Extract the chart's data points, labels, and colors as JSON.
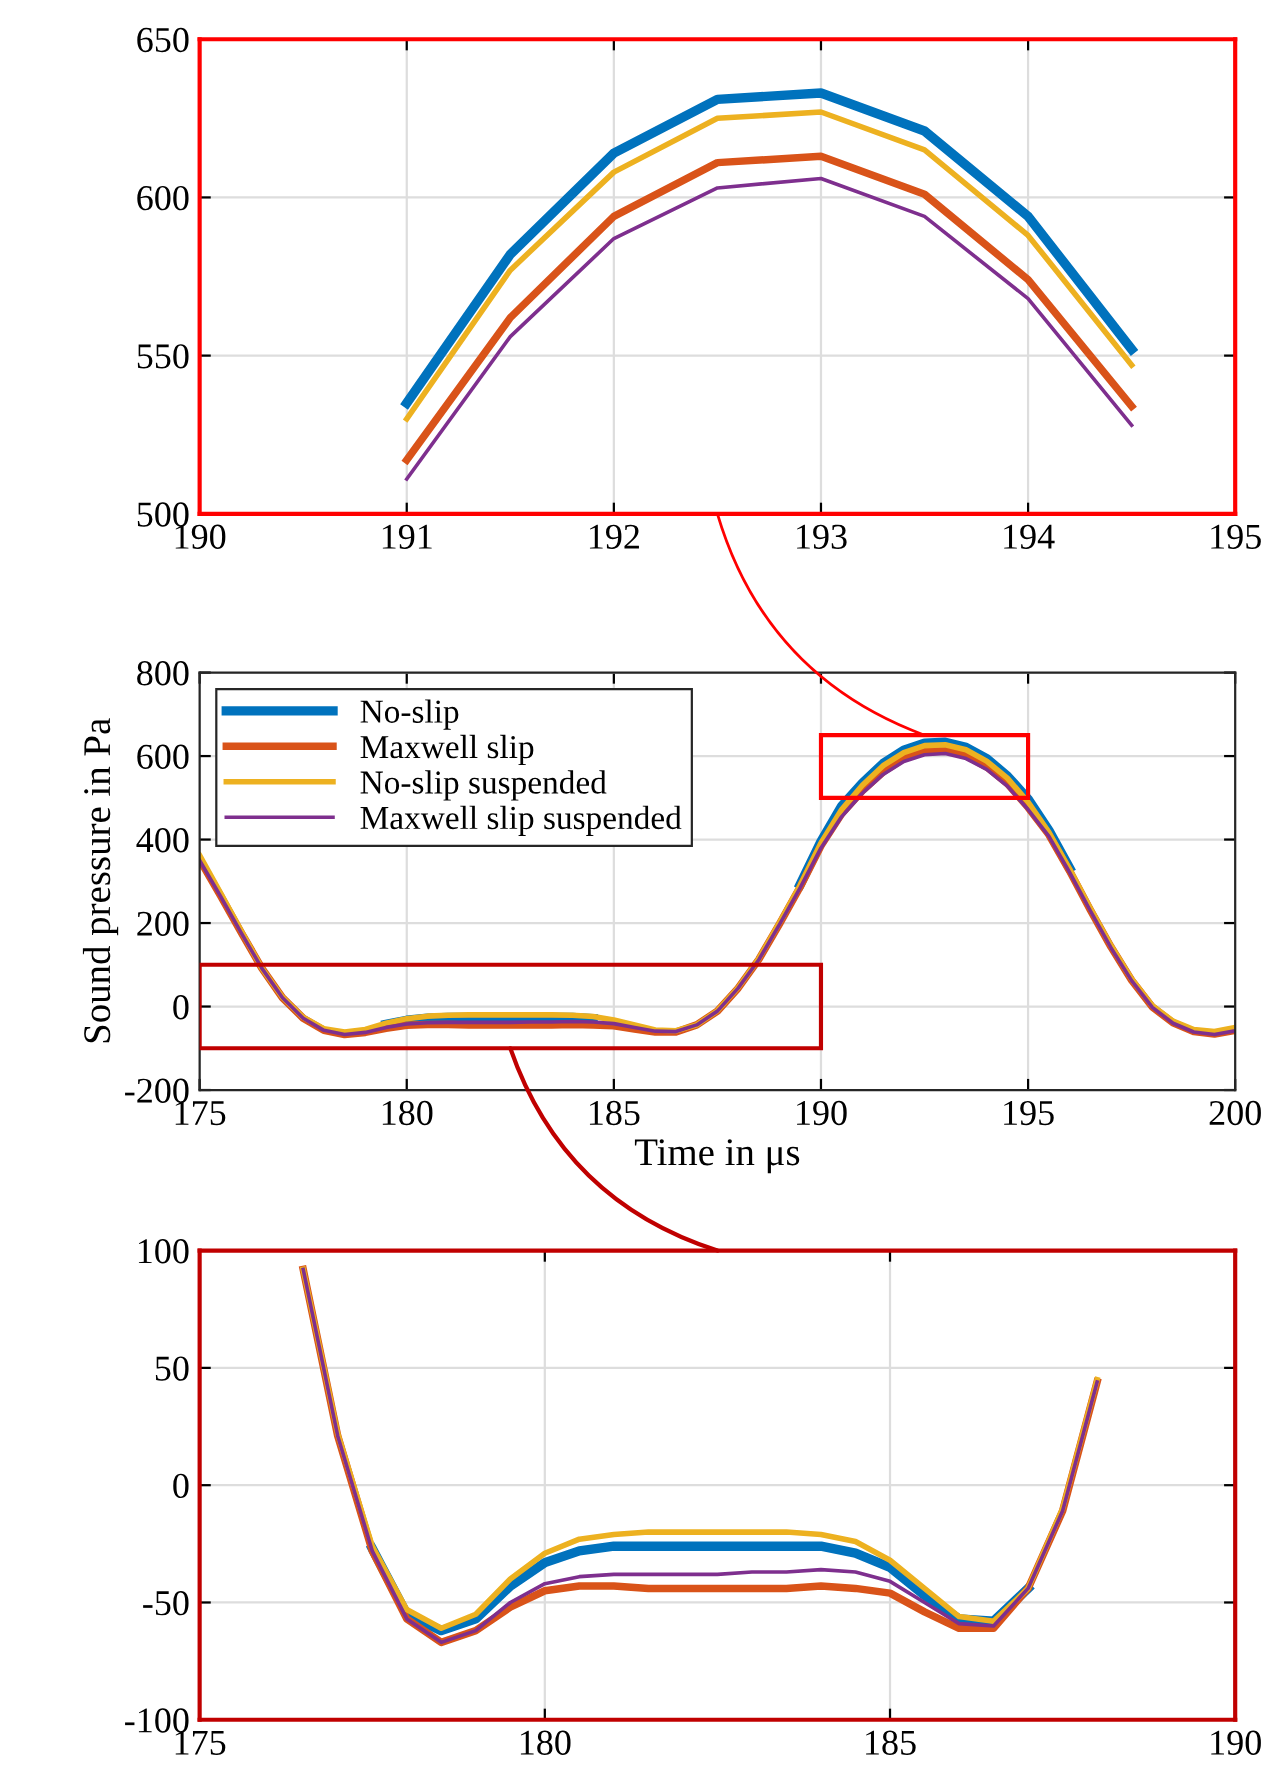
{
  "chart_data": [
    {
      "type": "line",
      "x": [
        191,
        191.5,
        192,
        192.5,
        193,
        193.5,
        194,
        194.5
      ],
      "xlim": [
        190,
        195
      ],
      "xticks": [
        190,
        191,
        192,
        193,
        194,
        195
      ],
      "ylim": [
        500,
        650
      ],
      "yticks": [
        500,
        550,
        600,
        650
      ],
      "grid": true,
      "legend": false,
      "line_style": "solid",
      "marker": "none",
      "series": [
        {
          "color": "#0072bd",
          "values": [
            535,
            582,
            614,
            631,
            633,
            621,
            594,
            552
          ]
        },
        {
          "color": "#d95319",
          "values": [
            517,
            562,
            594,
            611,
            613,
            601,
            574,
            534
          ]
        },
        {
          "color": "#edb120",
          "values": [
            530,
            577,
            608,
            625,
            627,
            615,
            588,
            547
          ]
        },
        {
          "color": "#7e2f8e",
          "values": [
            511,
            556,
            587,
            603,
            606,
            594,
            568,
            528
          ]
        }
      ]
    },
    {
      "type": "line",
      "x": [
        175,
        175.5,
        176,
        176.5,
        177,
        177.5,
        178,
        178.5,
        179,
        179.5,
        180,
        180.5,
        181,
        181.5,
        182,
        182.5,
        183,
        183.5,
        184,
        184.5,
        185,
        185.5,
        186,
        186.5,
        187,
        187.5,
        188,
        188.5,
        189,
        189.5,
        190,
        190.5,
        191,
        191.5,
        192,
        192.5,
        193,
        193.5,
        194,
        194.5,
        195,
        195.5,
        196,
        196.5,
        197,
        197.5,
        198,
        198.5,
        199,
        199.5,
        200
      ],
      "xlim": [
        175,
        200
      ],
      "xticks": [
        175,
        180,
        185,
        190,
        195,
        200
      ],
      "ylim": [
        -200,
        800
      ],
      "yticks": [
        -200,
        0,
        200,
        400,
        600,
        800
      ],
      "xlabel": "Time in μs",
      "ylabel": "Sound pressure in Pa",
      "grid": true,
      "legend": "top left",
      "line_style": "solid",
      "marker": "none",
      "series": [
        {
          "name": "No-slip",
          "color": "#0072bd",
          "values": [
            null,
            null,
            null,
            null,
            null,
            null,
            null,
            null,
            null,
            -43,
            -33,
            -28,
            -26,
            -26,
            -26,
            -26,
            -26,
            -26,
            -26,
            -29,
            null,
            null,
            null,
            null,
            null,
            null,
            null,
            null,
            null,
            293,
            395,
            480,
            535,
            582,
            614,
            631,
            633,
            621,
            594,
            552,
            497,
            422,
            332,
            null,
            null,
            null,
            null,
            null,
            null,
            null,
            null
          ]
        },
        {
          "name": "Maxwell slip",
          "color": "#d95319",
          "values": [
            352,
            266,
            178,
            92,
            21,
            -28,
            -57,
            -67,
            -62,
            -52,
            -45,
            -43,
            -43,
            -44,
            -44,
            -44,
            -44,
            -44,
            -43,
            -44,
            -46,
            -54,
            -61,
            -61,
            -44,
            -11,
            44,
            113,
            198,
            287,
            385,
            462,
            517,
            562,
            594,
            611,
            613,
            601,
            574,
            534,
            477,
            412,
            325,
            232,
            143,
            63,
            -1,
            -39,
            -60,
            -66,
            -57
          ]
        },
        {
          "name": "No-slip suspended",
          "color": "#edb120",
          "values": [
            362,
            273,
            182,
            92,
            22,
            -26,
            -53,
            -61,
            -55,
            -40,
            -29,
            -23,
            -21,
            -20,
            -20,
            -20,
            -20,
            -20,
            -21,
            -24,
            -32,
            -44,
            -56,
            -58,
            -44,
            -10,
            45,
            115,
            201,
            291,
            392,
            472,
            530,
            577,
            608,
            625,
            627,
            615,
            588,
            547,
            490,
            418,
            330,
            236,
            146,
            66,
            2,
            -35,
            -55,
            -60,
            -50
          ]
        },
        {
          "name": "Maxwell slip suspended",
          "color": "#7e2f8e",
          "values": [
            350,
            265,
            177,
            92,
            21,
            -28,
            -57,
            -67,
            -62,
            -50,
            -42,
            -39,
            -38,
            -38,
            -38,
            -38,
            -37,
            -37,
            -36,
            -37,
            -41,
            -50,
            -59,
            -60,
            -44,
            -11,
            44,
            112,
            197,
            285,
            380,
            455,
            511,
            556,
            587,
            603,
            606,
            594,
            568,
            528,
            472,
            408,
            322,
            230,
            141,
            62,
            -2,
            -40,
            -61,
            -67,
            -58
          ]
        }
      ]
    },
    {
      "type": "line",
      "x": [
        176.5,
        177,
        177.5,
        178,
        178.5,
        179,
        179.5,
        180,
        180.5,
        181,
        181.5,
        182,
        182.5,
        183,
        183.5,
        184,
        184.5,
        185,
        185.5,
        186,
        186.5,
        187,
        187.5,
        188
      ],
      "xlim": [
        175,
        190
      ],
      "xticks": [
        175,
        180,
        185,
        190
      ],
      "ylim": [
        -100,
        100
      ],
      "yticks": [
        -100,
        -50,
        0,
        50,
        100
      ],
      "grid": true,
      "legend": false,
      "line_style": "solid",
      "marker": "none",
      "series": [
        {
          "color": "#0072bd",
          "values": [
            null,
            null,
            -27,
            -55,
            -62,
            -57,
            -43,
            -33,
            -28,
            -26,
            -26,
            -26,
            -26,
            -26,
            -26,
            -26,
            -29,
            -35,
            -47,
            -57,
            -58,
            -44,
            null,
            null
          ]
        },
        {
          "color": "#d95319",
          "values": [
            92,
            21,
            -28,
            -57,
            -67,
            -62,
            -52,
            -45,
            -43,
            -43,
            -44,
            -44,
            -44,
            -44,
            -44,
            -43,
            -44,
            -46,
            -54,
            -61,
            -61,
            -44,
            -11,
            44
          ]
        },
        {
          "color": "#edb120",
          "values": [
            92,
            22,
            -26,
            -53,
            -61,
            -55,
            -40,
            -29,
            -23,
            -21,
            -20,
            -20,
            -20,
            -20,
            -20,
            -21,
            -24,
            -32,
            -44,
            -56,
            -58,
            -44,
            -10,
            45
          ]
        },
        {
          "color": "#7e2f8e",
          "values": [
            92,
            21,
            -28,
            -57,
            -67,
            -62,
            -50,
            -42,
            -39,
            -38,
            -38,
            -38,
            -38,
            -37,
            -37,
            -36,
            -37,
            -41,
            -50,
            -59,
            -60,
            -44,
            -11,
            44
          ]
        }
      ]
    }
  ]
}
